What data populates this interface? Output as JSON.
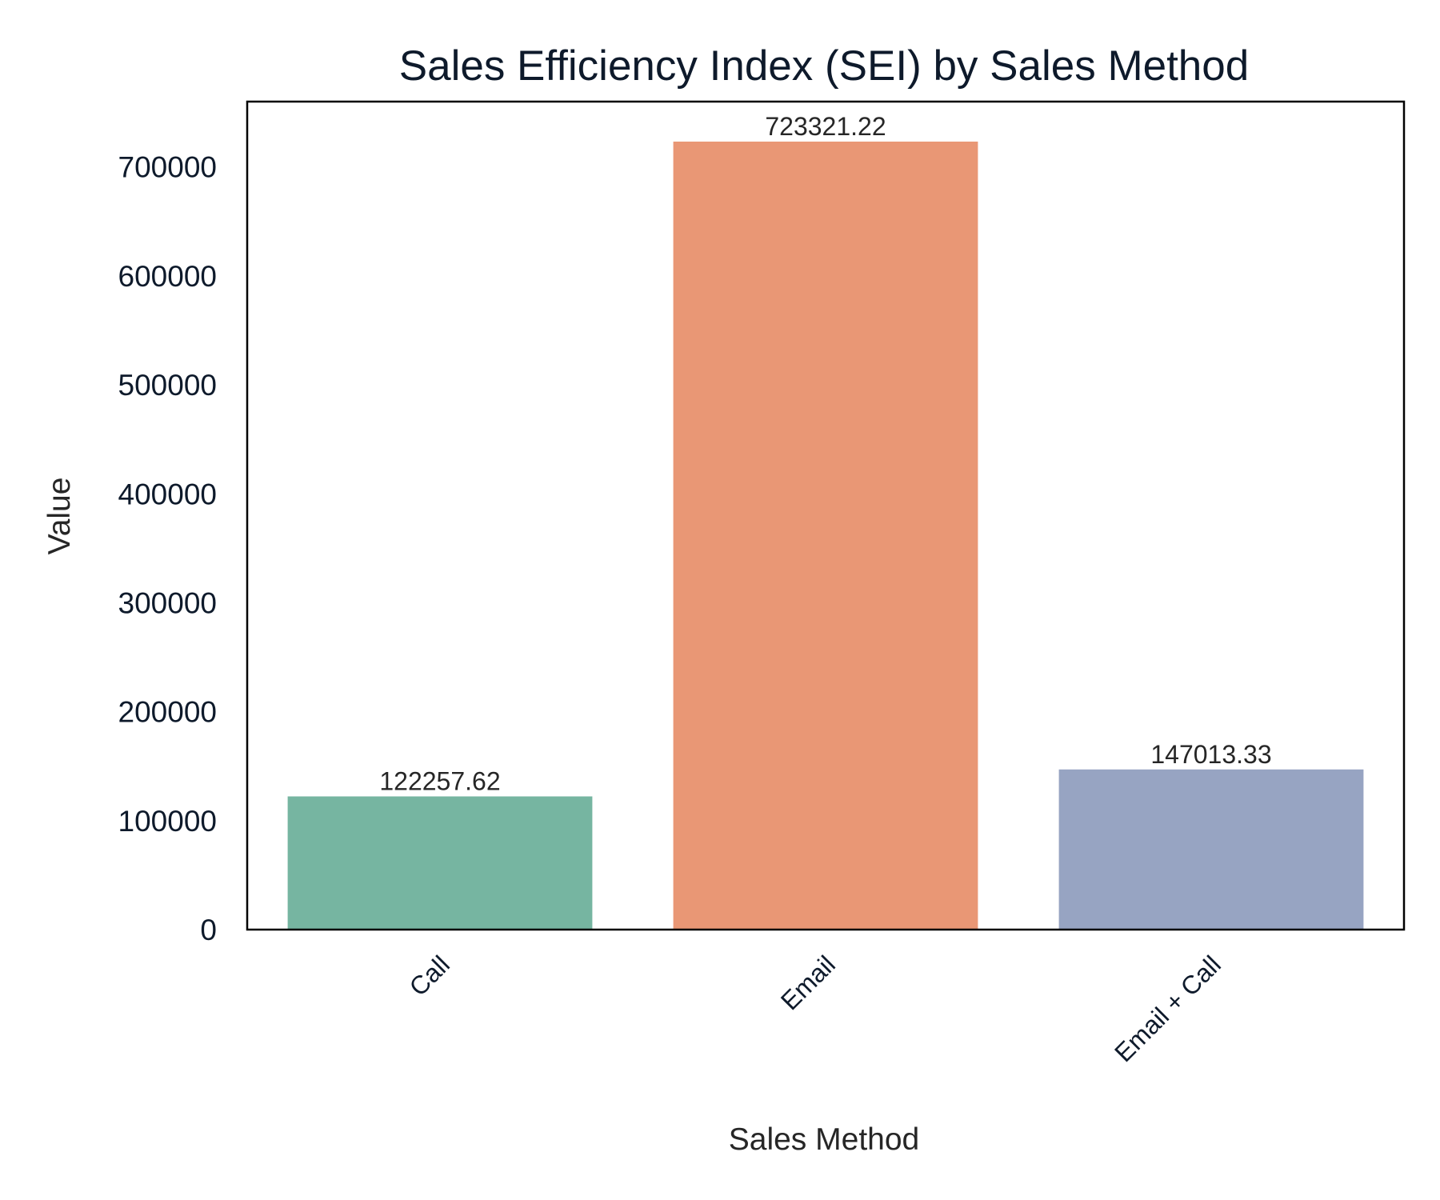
{
  "chart_data": {
    "type": "bar",
    "title": "Sales Efficiency Index (SEI) by Sales Method",
    "xlabel": "Sales Method",
    "ylabel": "Value",
    "categories": [
      "Call",
      "Email",
      "Email + Call"
    ],
    "values": [
      122257.62,
      723321.22,
      147013.33
    ],
    "data_labels": [
      "122257.62",
      "723321.22",
      "147013.33"
    ],
    "colors": [
      "#76b5a1",
      "#e99775",
      "#97a4c2"
    ],
    "ylim": [
      0,
      760000
    ],
    "yticks": [
      0,
      100000,
      200000,
      300000,
      400000,
      500000,
      600000,
      700000
    ],
    "ytick_labels": [
      "0",
      "100000",
      "200000",
      "300000",
      "400000",
      "500000",
      "600000",
      "700000"
    ],
    "grid": false,
    "xtick_rotation": 45
  }
}
